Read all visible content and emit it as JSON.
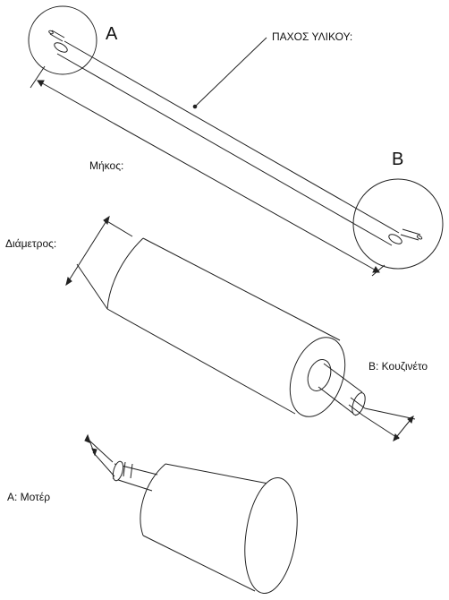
{
  "labels": {
    "detail_a": "A",
    "detail_b": "B",
    "material_thickness": "ΠΑΧΟΣ ΥΛΙΚΟΥ:",
    "length": "Μήκος:",
    "diameter": "Διάμετρος:",
    "bearing": "B: Κουζινέτο",
    "motor": "A: Μοτέρ"
  }
}
